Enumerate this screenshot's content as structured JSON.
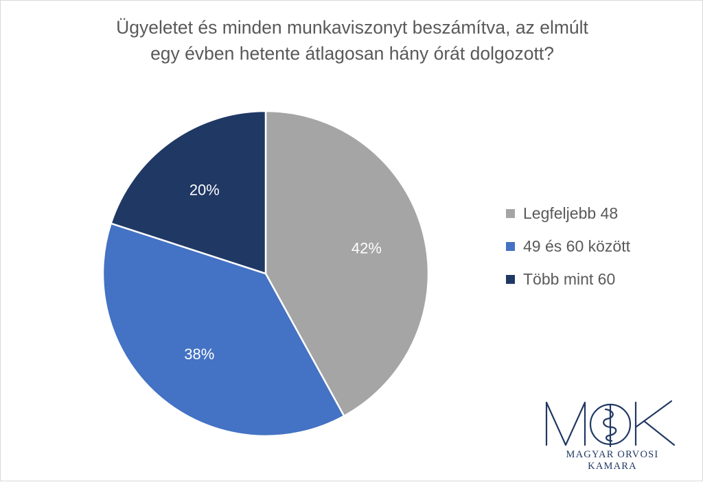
{
  "title_lines": [
    "Ügyeletet és minden munkaviszonyt beszámítva, az elmúlt",
    "egy évben hetente átlagosan hány órát dolgozott?"
  ],
  "chart_data": {
    "type": "pie",
    "title": "Ügyeletet és minden munkaviszonyt beszámítva, az elmúlt egy évben hetente átlagosan hány órát dolgozott?",
    "categories": [
      "Legfeljebb 48",
      "49 és 60 között",
      "Több mint 60"
    ],
    "values": [
      42,
      38,
      20
    ],
    "labels": [
      "42%",
      "38%",
      "20%"
    ],
    "colors": [
      "#a5a5a5",
      "#4472c4",
      "#203864"
    ],
    "legend_position": "right",
    "start": "12 o'clock",
    "direction": "clockwise"
  },
  "legend": [
    {
      "label": "Legfeljebb 48",
      "color": "#a5a5a5"
    },
    {
      "label": "49 és 60 között",
      "color": "#4472c4"
    },
    {
      "label": "Több mint 60",
      "color": "#203864"
    }
  ],
  "logo": {
    "letters": "MOK",
    "name": "MAGYAR ORVOSI KAMARA",
    "color": "#203864"
  }
}
